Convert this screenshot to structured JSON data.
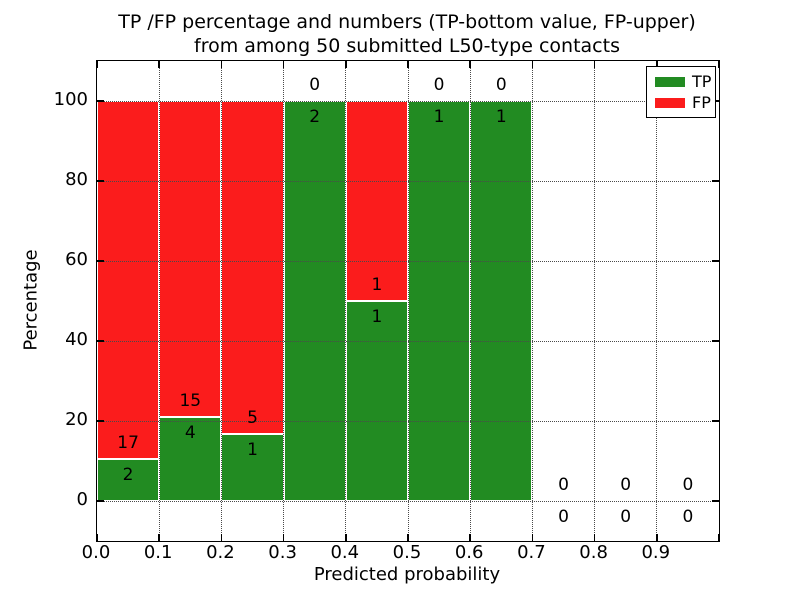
{
  "chart_data": {
    "type": "bar",
    "stacked": true,
    "title_lines": [
      "TP /FP percentage and numbers (TP-bottom value, FP-upper)",
      "from among 50 submitted L50-type contacts"
    ],
    "xlabel": "Predicted probability",
    "ylabel": "Percentage",
    "xlim": [
      0.0,
      1.0
    ],
    "ylim": [
      -10,
      110
    ],
    "x_tick_labels": [
      "0.0",
      "0.1",
      "0.2",
      "0.3",
      "0.4",
      "0.5",
      "0.6",
      "0.7",
      "0.8",
      "0.9"
    ],
    "y_tick_labels": [
      "0",
      "20",
      "40",
      "60",
      "80",
      "100"
    ],
    "y_tick_values": [
      0,
      20,
      40,
      60,
      80,
      100
    ],
    "grid": "dotted",
    "legend_position": "upper right",
    "colors": {
      "tp": "#228B22",
      "fp": "#FB1C1C",
      "bar_edge": "#ffffff"
    },
    "legend": [
      {
        "label": "TP",
        "color": "#228B22"
      },
      {
        "label": "FP",
        "color": "#FB1C1C"
      }
    ],
    "bins": [
      {
        "range": [
          0.0,
          0.1
        ],
        "tp": 2,
        "fp": 17,
        "tp_pct": 10.53
      },
      {
        "range": [
          0.1,
          0.2
        ],
        "tp": 4,
        "fp": 15,
        "tp_pct": 21.05
      },
      {
        "range": [
          0.2,
          0.3
        ],
        "tp": 1,
        "fp": 5,
        "tp_pct": 16.67
      },
      {
        "range": [
          0.3,
          0.4
        ],
        "tp": 2,
        "fp": 0,
        "tp_pct": 100
      },
      {
        "range": [
          0.4,
          0.5
        ],
        "tp": 1,
        "fp": 1,
        "tp_pct": 50
      },
      {
        "range": [
          0.5,
          0.6
        ],
        "tp": 1,
        "fp": 0,
        "tp_pct": 100
      },
      {
        "range": [
          0.6,
          0.7
        ],
        "tp": 1,
        "fp": 0,
        "tp_pct": 100
      },
      {
        "range": [
          0.7,
          0.8
        ],
        "tp": 0,
        "fp": 0,
        "tp_pct": 0
      },
      {
        "range": [
          0.8,
          0.9
        ],
        "tp": 0,
        "fp": 0,
        "tp_pct": 0
      },
      {
        "range": [
          0.9,
          1.0
        ],
        "tp": 0,
        "fp": 0,
        "tp_pct": 0
      }
    ]
  }
}
